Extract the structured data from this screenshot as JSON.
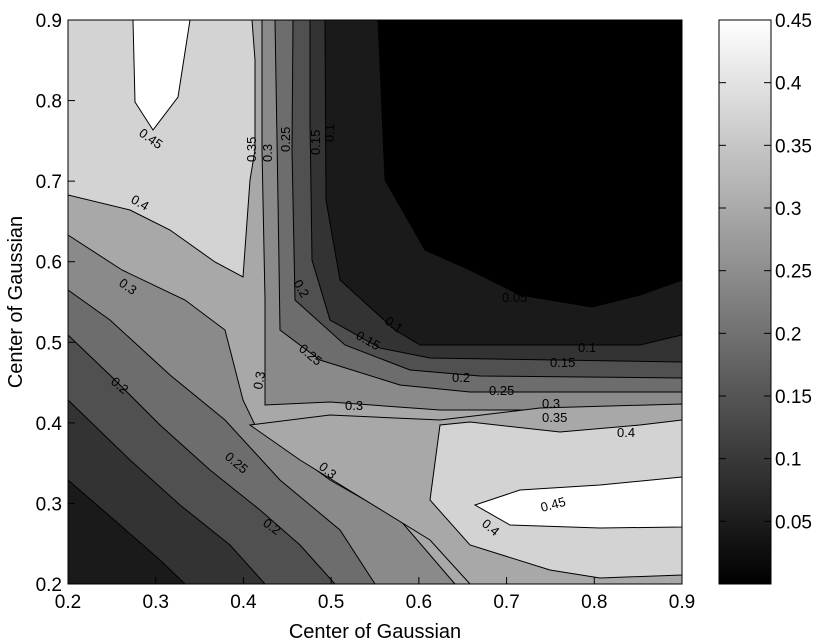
{
  "chart_data": {
    "type": "contour",
    "title": "",
    "xlabel": "Center of Gaussian",
    "ylabel": "Center of Gaussian",
    "xlim": [
      0.2,
      0.9
    ],
    "ylim": [
      0.2,
      0.9
    ],
    "x_ticks": [
      "0.2",
      "0.3",
      "0.4",
      "0.5",
      "0.6",
      "0.7",
      "0.8",
      "0.9"
    ],
    "y_ticks": [
      "0.2",
      "0.3",
      "0.4",
      "0.5",
      "0.6",
      "0.7",
      "0.8",
      "0.9"
    ],
    "colorbar": {
      "colormap": "gray",
      "range": [
        0,
        0.45
      ],
      "ticks": [
        "0.05",
        "0.1",
        "0.15",
        "0.2",
        "0.25",
        "0.3",
        "0.35",
        "0.4",
        "0.45"
      ]
    },
    "contour_levels": [
      0.05,
      0.1,
      0.15,
      0.2,
      0.25,
      0.3,
      0.35,
      0.4,
      0.45
    ],
    "grid": [
      {
        "x": 0.2,
        "y": 0.9,
        "v": 0.4
      },
      {
        "x": 0.3,
        "y": 0.9,
        "v": 0.47
      },
      {
        "x": 0.4,
        "y": 0.9,
        "v": 0.36
      },
      {
        "x": 0.5,
        "y": 0.9,
        "v": 0.12
      },
      {
        "x": 0.6,
        "y": 0.9,
        "v": 0.02
      },
      {
        "x": 0.7,
        "y": 0.9,
        "v": 0.0
      },
      {
        "x": 0.8,
        "y": 0.9,
        "v": 0.0
      },
      {
        "x": 0.9,
        "y": 0.9,
        "v": 0.0
      },
      {
        "x": 0.3,
        "y": 0.7,
        "v": 0.42
      },
      {
        "x": 0.7,
        "y": 0.6,
        "v": 0.03
      },
      {
        "x": 0.4,
        "y": 0.4,
        "v": 0.32
      },
      {
        "x": 0.8,
        "y": 0.3,
        "v": 0.46
      },
      {
        "x": 0.2,
        "y": 0.2,
        "v": 0.07
      },
      {
        "x": 0.6,
        "y": 0.2,
        "v": 0.36
      }
    ],
    "contour_labels": [
      {
        "text": "0.45",
        "x": 0.3,
        "y": 0.79
      },
      {
        "text": "0.4",
        "x": 0.28,
        "y": 0.68
      },
      {
        "text": "0.35",
        "x": 0.41,
        "y": 0.75
      },
      {
        "text": "0.3",
        "x": 0.42,
        "y": 0.73
      },
      {
        "text": "0.25",
        "x": 0.44,
        "y": 0.75
      },
      {
        "text": "0.15",
        "x": 0.48,
        "y": 0.75
      },
      {
        "text": "0.1",
        "x": 0.5,
        "y": 0.76
      },
      {
        "text": "0.2",
        "x": 0.45,
        "y": 0.57
      },
      {
        "text": "0.1",
        "x": 0.53,
        "y": 0.53
      },
      {
        "text": "0.15",
        "x": 0.52,
        "y": 0.5
      },
      {
        "text": "0.25",
        "x": 0.47,
        "y": 0.48
      },
      {
        "text": "0.3",
        "x": 0.39,
        "y": 0.46
      },
      {
        "text": "0.2",
        "x": 0.64,
        "y": 0.46
      },
      {
        "text": "0.25",
        "x": 0.69,
        "y": 0.44
      },
      {
        "text": "0.3",
        "x": 0.53,
        "y": 0.42
      },
      {
        "text": "0.3",
        "x": 0.75,
        "y": 0.43
      },
      {
        "text": "0.35",
        "x": 0.76,
        "y": 0.41
      },
      {
        "text": "0.4",
        "x": 0.84,
        "y": 0.39
      },
      {
        "text": "0.45",
        "x": 0.77,
        "y": 0.31
      },
      {
        "text": "0.4",
        "x": 0.69,
        "y": 0.27
      },
      {
        "text": "0.15",
        "x": 0.77,
        "y": 0.49
      },
      {
        "text": "0.1",
        "x": 0.83,
        "y": 0.5
      },
      {
        "text": "0.05",
        "x": 0.7,
        "y": 0.56
      },
      {
        "text": "0.3",
        "x": 0.22,
        "y": 0.56
      },
      {
        "text": "0.2",
        "x": 0.22,
        "y": 0.44
      },
      {
        "text": "0.25",
        "x": 0.36,
        "y": 0.36
      },
      {
        "text": "0.3",
        "x": 0.45,
        "y": 0.34
      },
      {
        "text": "0.2",
        "x": 0.38,
        "y": 0.27
      }
    ]
  }
}
